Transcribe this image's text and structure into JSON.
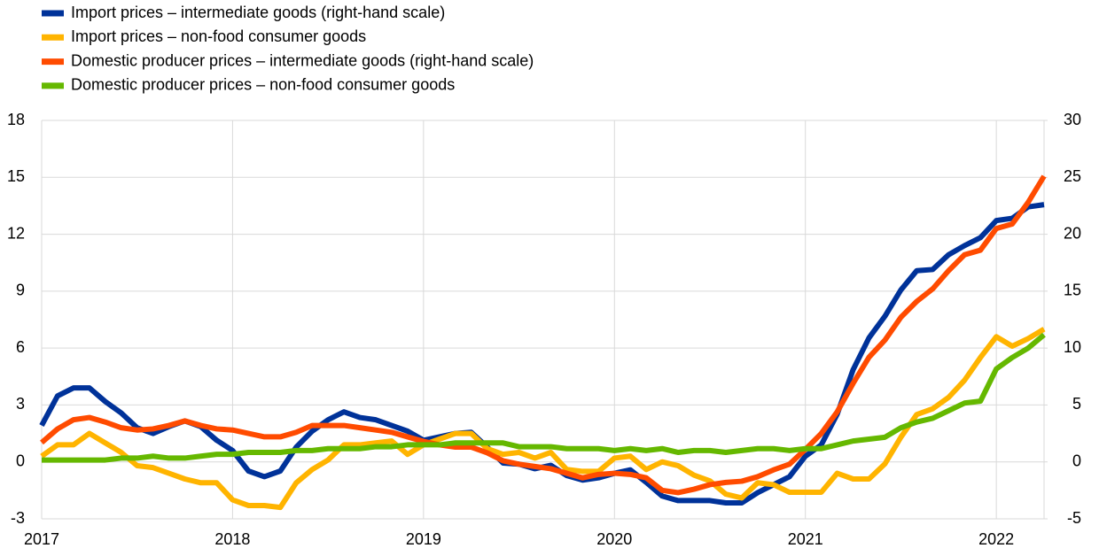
{
  "chart_data": {
    "type": "line",
    "categories": [
      "2017",
      null,
      null,
      null,
      null,
      null,
      null,
      null,
      null,
      null,
      null,
      null,
      "2018",
      null,
      null,
      null,
      null,
      null,
      null,
      null,
      null,
      null,
      null,
      null,
      "2019",
      null,
      null,
      null,
      null,
      null,
      null,
      null,
      null,
      null,
      null,
      null,
      "2020",
      null,
      null,
      null,
      null,
      null,
      null,
      null,
      null,
      null,
      null,
      null,
      "2021",
      null,
      null,
      null,
      null,
      null,
      null,
      null,
      null,
      null,
      null,
      null,
      "2022",
      null,
      null,
      null
    ],
    "series": [
      {
        "name": "Import prices – intermediate goods (right-hand scale)",
        "color": "#003299",
        "axis": "y2",
        "values": [
          3.2,
          5.8,
          6.5,
          6.5,
          5.3,
          4.3,
          3.0,
          2.5,
          3.1,
          3.6,
          3.1,
          1.9,
          1.0,
          -0.8,
          -1.3,
          -0.8,
          1.3,
          2.7,
          3.7,
          4.4,
          3.9,
          3.7,
          3.2,
          2.7,
          1.9,
          2.2,
          2.5,
          2.6,
          1.3,
          -0.1,
          -0.2,
          -0.6,
          -0.3,
          -1.2,
          -1.6,
          -1.4,
          -1.0,
          -0.7,
          -1.8,
          -3.0,
          -3.4,
          -3.4,
          -3.4,
          -3.6,
          -3.6,
          -2.7,
          -2.0,
          -1.3,
          0.5,
          1.5,
          4.2,
          8.1,
          10.9,
          12.8,
          15.1,
          16.8,
          16.9,
          18.2,
          19.0,
          19.7,
          21.2,
          21.4,
          22.4,
          22.6
        ]
      },
      {
        "name": "Import prices – non-food consumer goods",
        "color": "#ffb400",
        "values": [
          0.3,
          0.9,
          0.9,
          1.5,
          1.0,
          0.5,
          -0.2,
          -0.3,
          -0.6,
          -0.9,
          -1.1,
          -1.1,
          -2.0,
          -2.3,
          -2.3,
          -2.4,
          -1.1,
          -0.4,
          0.1,
          0.9,
          0.9,
          1.0,
          1.1,
          0.4,
          0.9,
          1.2,
          1.5,
          1.5,
          0.7,
          0.4,
          0.5,
          0.2,
          0.5,
          -0.4,
          -0.5,
          -0.5,
          0.2,
          0.3,
          -0.4,
          0.0,
          -0.2,
          -0.7,
          -1.0,
          -1.7,
          -1.9,
          -1.1,
          -1.2,
          -1.6,
          -1.6,
          -1.6,
          -0.6,
          -0.9,
          -0.9,
          -0.1,
          1.3,
          2.5,
          2.8,
          3.4,
          4.3,
          5.5,
          6.6,
          6.1,
          6.5,
          7.0
        ]
      },
      {
        "name": "Domestic producer prices – intermediate goods (right-hand scale)",
        "color": "#ff4b00",
        "axis": "y2",
        "values": [
          1.7,
          2.9,
          3.7,
          3.9,
          3.5,
          3.0,
          2.8,
          2.9,
          3.2,
          3.6,
          3.2,
          2.9,
          2.8,
          2.5,
          2.2,
          2.2,
          2.6,
          3.2,
          3.2,
          3.2,
          3.0,
          2.8,
          2.6,
          2.2,
          1.8,
          1.5,
          1.3,
          1.3,
          0.8,
          0.1,
          -0.2,
          -0.4,
          -0.6,
          -1.0,
          -1.4,
          -1.1,
          -1.0,
          -1.1,
          -1.4,
          -2.5,
          -2.7,
          -2.4,
          -2.0,
          -1.8,
          -1.7,
          -1.3,
          -0.7,
          -0.2,
          1.1,
          2.5,
          4.4,
          6.9,
          9.2,
          10.7,
          12.7,
          14.1,
          15.2,
          16.8,
          18.2,
          18.6,
          20.5,
          20.9,
          22.8,
          25.1
        ]
      },
      {
        "name": "Domestic producer prices – non-food consumer goods",
        "color": "#65b800",
        "values": [
          0.1,
          0.1,
          0.1,
          0.1,
          0.1,
          0.2,
          0.2,
          0.3,
          0.2,
          0.2,
          0.3,
          0.4,
          0.4,
          0.5,
          0.5,
          0.5,
          0.6,
          0.6,
          0.7,
          0.7,
          0.7,
          0.8,
          0.8,
          0.9,
          0.9,
          0.9,
          1.0,
          1.0,
          1.0,
          1.0,
          0.8,
          0.8,
          0.8,
          0.7,
          0.7,
          0.7,
          0.6,
          0.7,
          0.6,
          0.7,
          0.5,
          0.6,
          0.6,
          0.5,
          0.6,
          0.7,
          0.7,
          0.6,
          0.7,
          0.7,
          0.9,
          1.1,
          1.2,
          1.3,
          1.8,
          2.1,
          2.3,
          2.7,
          3.1,
          3.2,
          4.9,
          5.5,
          6.0,
          6.7
        ]
      }
    ],
    "ylim": [
      -3,
      18
    ],
    "yticks": [
      -3,
      0,
      3,
      6,
      9,
      12,
      15,
      18
    ],
    "y2lim": [
      -5,
      30
    ],
    "y2ticks": [
      -5,
      0,
      5,
      10,
      15,
      20,
      25,
      30
    ],
    "grid": true,
    "legend": "top-left"
  }
}
